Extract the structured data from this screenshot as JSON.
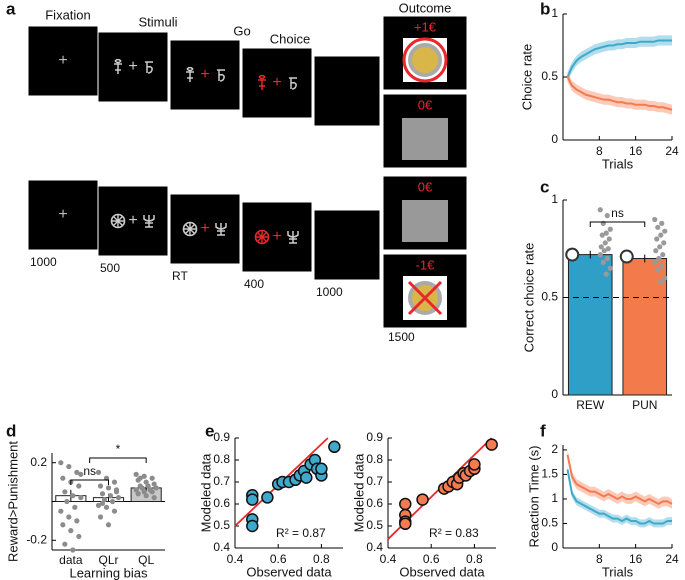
{
  "panel_labels": [
    "a",
    "b",
    "c",
    "d",
    "e",
    "f"
  ],
  "task": {
    "phases": [
      "Fixation",
      "Stimuli",
      "Go",
      "Choice",
      "Outcome"
    ],
    "durations": [
      1000,
      500,
      "RT",
      400,
      1000,
      1500
    ],
    "fixation": "+",
    "outcomes": [
      "+1€",
      "0€",
      "0€",
      "-1€"
    ]
  },
  "chart_data": [
    {
      "type": "line",
      "ylabel": "Choice rate",
      "xlabel": "Trials",
      "x": [
        1,
        2,
        3,
        4,
        5,
        6,
        7,
        8,
        9,
        10,
        11,
        12,
        13,
        14,
        15,
        16,
        17,
        18,
        19,
        20,
        21,
        22,
        23,
        24
      ],
      "xlim": [
        0,
        24
      ],
      "xticks": [
        8,
        16,
        24
      ],
      "ylim": [
        0,
        1
      ],
      "yticks": [
        0,
        0.5,
        1
      ],
      "series": [
        {
          "color": "#3fa9cc",
          "error": 0.04,
          "values": [
            0.5,
            0.58,
            0.63,
            0.66,
            0.68,
            0.7,
            0.72,
            0.73,
            0.74,
            0.75,
            0.75,
            0.76,
            0.76,
            0.77,
            0.77,
            0.77,
            0.78,
            0.78,
            0.78,
            0.78,
            0.79,
            0.79,
            0.79,
            0.79
          ]
        },
        {
          "color": "#f47a4f",
          "error": 0.04,
          "values": [
            0.5,
            0.43,
            0.4,
            0.38,
            0.36,
            0.35,
            0.34,
            0.33,
            0.32,
            0.32,
            0.31,
            0.3,
            0.3,
            0.29,
            0.29,
            0.28,
            0.28,
            0.28,
            0.27,
            0.27,
            0.26,
            0.26,
            0.25,
            0.24
          ]
        }
      ]
    },
    {
      "type": "bar",
      "ylabel": "Correct choice rate",
      "categories": [
        "REW",
        "PUN"
      ],
      "values": [
        0.72,
        0.7
      ],
      "errors": [
        0.02,
        0.02
      ],
      "colors": [
        "#2f9fc8",
        "#f37b4b"
      ],
      "edgecolor": "#222",
      "ylim": [
        0,
        1
      ],
      "yticks": [
        0,
        0.5,
        1
      ],
      "hline": 0.5,
      "point_color": "#9a9a9a",
      "points": [
        [
          0.95,
          0.92,
          0.88,
          0.85,
          0.83,
          0.82,
          0.8,
          0.78,
          0.76,
          0.75,
          0.74,
          0.72,
          0.7,
          0.68,
          0.65,
          0.62
        ],
        [
          0.9,
          0.88,
          0.86,
          0.84,
          0.82,
          0.8,
          0.78,
          0.76,
          0.74,
          0.72,
          0.7,
          0.68,
          0.66,
          0.64,
          0.6,
          0.58
        ]
      ],
      "model": [
        0.72,
        0.71
      ],
      "annotations": [
        "ns"
      ]
    },
    {
      "type": "bar",
      "ylabel": "Reward>Punishment",
      "xlabel": "Learning bias",
      "categories": [
        "data",
        "QLr",
        "QL"
      ],
      "values": [
        0.03,
        0.02,
        0.07
      ],
      "errors": [
        0.03,
        0.02,
        0.015
      ],
      "colors": [
        "#ffffff",
        "#ffffff",
        "#c8c8c8"
      ],
      "edgecolor": "#222",
      "ylim": [
        -0.25,
        0.25
      ],
      "yticks": [
        -0.2,
        0.2
      ],
      "point_color": "#8c8c8c",
      "points": [
        [
          0.2,
          0.18,
          0.15,
          0.12,
          0.1,
          0.08,
          0.05,
          0.03,
          0.02,
          0,
          -0.03,
          -0.05,
          -0.08,
          -0.1,
          -0.12,
          -0.15,
          -0.18,
          -0.22,
          -0.25,
          0.14
        ],
        [
          0.15,
          0.12,
          0.1,
          0.08,
          0.07,
          0.05,
          0.04,
          0.03,
          0.02,
          0.01,
          0,
          -0.02,
          -0.03,
          -0.05,
          -0.08,
          -0.12,
          0.06,
          -0.01
        ],
        [
          0.14,
          0.13,
          0.12,
          0.11,
          0.1,
          0.09,
          0.08,
          0.08,
          0.07,
          0.07,
          0.06,
          0.06,
          0.05,
          0.05,
          0.04,
          0.03,
          0.02,
          0.12
        ]
      ],
      "annotations": [
        "ns",
        "*"
      ]
    },
    {
      "type": "scatter",
      "ylabel": "Modeled data",
      "xlabel": "Observed data",
      "color": "#3fa9cc",
      "x": [
        0.48,
        0.48,
        0.48,
        0.48,
        0.55,
        0.6,
        0.62,
        0.65,
        0.68,
        0.7,
        0.72,
        0.73,
        0.75,
        0.77,
        0.78,
        0.8,
        0.8,
        0.86
      ],
      "y": [
        0.64,
        0.62,
        0.53,
        0.5,
        0.63,
        0.69,
        0.7,
        0.7,
        0.71,
        0.73,
        0.75,
        0.72,
        0.78,
        0.8,
        0.76,
        0.73,
        0.76,
        0.86
      ],
      "xlim": [
        0.4,
        0.9
      ],
      "xticks": [
        0.4,
        0.6,
        0.8
      ],
      "ylim": [
        0.4,
        0.9
      ],
      "yticks": [
        0.4,
        0.5,
        0.6,
        0.7,
        0.8,
        0.9
      ],
      "fit": {
        "color": "#e8282b",
        "x": [
          0.4,
          0.83
        ],
        "y": [
          0.5,
          0.9
        ]
      },
      "annotation": "R² = 0.87"
    },
    {
      "type": "scatter",
      "ylabel": "Modeled data",
      "xlabel": "Observed data",
      "color": "#f47a4f",
      "x": [
        0.48,
        0.48,
        0.48,
        0.48,
        0.56,
        0.66,
        0.68,
        0.7,
        0.72,
        0.73,
        0.75,
        0.76,
        0.78,
        0.8,
        0.8,
        0.88
      ],
      "y": [
        0.6,
        0.55,
        0.52,
        0.51,
        0.62,
        0.67,
        0.68,
        0.7,
        0.69,
        0.72,
        0.74,
        0.73,
        0.75,
        0.76,
        0.78,
        0.87
      ],
      "xlim": [
        0.4,
        0.9
      ],
      "xticks": [
        0.4,
        0.6,
        0.8
      ],
      "ylim": [
        0.4,
        0.9
      ],
      "yticks": [
        0.4,
        0.5,
        0.6,
        0.7,
        0.8,
        0.9
      ],
      "fit": {
        "color": "#e8282b",
        "x": [
          0.4,
          0.88
        ],
        "y": [
          0.44,
          0.9
        ]
      },
      "annotation": "R² = 0.83"
    },
    {
      "type": "line",
      "ylabel": "Reaction Time (s)",
      "xlabel": "Trials",
      "x": [
        1,
        2,
        3,
        4,
        5,
        6,
        7,
        8,
        9,
        10,
        11,
        12,
        13,
        14,
        15,
        16,
        17,
        18,
        19,
        20,
        21,
        22,
        23,
        24
      ],
      "xlim": [
        0,
        24
      ],
      "xticks": [
        8,
        16,
        24
      ],
      "ylim": [
        0,
        2.1
      ],
      "yticks": [
        0,
        0.5,
        1,
        1.5,
        2
      ],
      "series": [
        {
          "color": "#f47a4f",
          "error": 0.1,
          "values": [
            1.9,
            1.45,
            1.3,
            1.25,
            1.2,
            1.15,
            1.15,
            1.1,
            1.05,
            1.1,
            1.05,
            1.0,
            1.05,
            1.0,
            1.0,
            1.05,
            1.0,
            0.95,
            1.0,
            0.95,
            0.9,
            0.95,
            0.95,
            0.9
          ]
        },
        {
          "color": "#3fa9cc",
          "error": 0.08,
          "values": [
            1.6,
            1.1,
            0.95,
            0.9,
            0.85,
            0.8,
            0.75,
            0.7,
            0.7,
            0.65,
            0.6,
            0.6,
            0.55,
            0.6,
            0.55,
            0.55,
            0.5,
            0.5,
            0.55,
            0.5,
            0.5,
            0.5,
            0.55,
            0.55
          ]
        }
      ]
    }
  ]
}
